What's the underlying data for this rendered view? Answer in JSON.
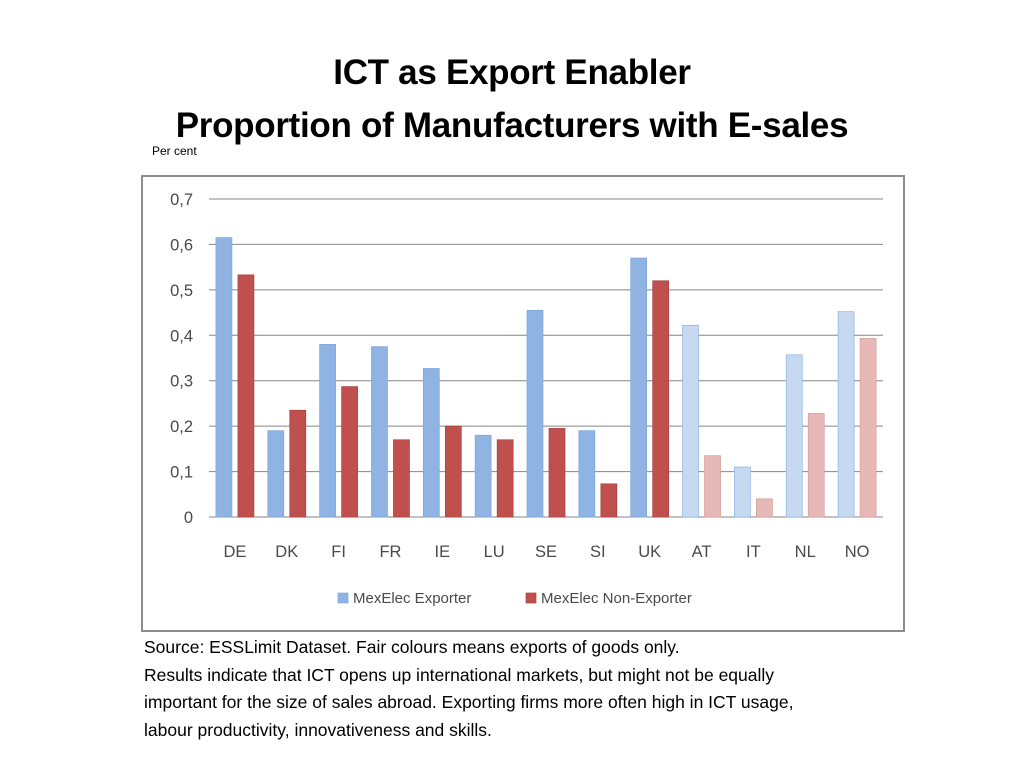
{
  "slide": {
    "title_line1": "ICT as Export Enabler",
    "title_line2": "Proportion of Manufacturers with E-sales",
    "unit_label": "Per cent",
    "source_lines": [
      "Source: ESSLimit Dataset. Fair colours means exports of goods only.",
      "Results indicate  that ICT opens up international markets, but might not be equally",
      "important for the size of sales abroad. Exporting firms more often high in ICT usage,",
      "labour productivity, innovativeness and skills."
    ]
  },
  "colors": {
    "exporter": "#8fb4e3",
    "non_exporter": "#c0504d",
    "exporter_fair": "#c6d9f1",
    "non_exporter_fair": "#e6b9b8",
    "gridline": "#868686"
  },
  "chart_data": {
    "type": "bar",
    "categories": [
      "DE",
      "DK",
      "FI",
      "FR",
      "IE",
      "LU",
      "SE",
      "SI",
      "UK",
      "AT",
      "IT",
      "NL",
      "NO"
    ],
    "fair_categories": [
      "AT",
      "IT",
      "NL",
      "NO"
    ],
    "series": [
      {
        "name": "MexElec Exporter",
        "values": [
          0.615,
          0.19,
          0.38,
          0.375,
          0.327,
          0.18,
          0.455,
          0.19,
          0.57,
          0.422,
          0.11,
          0.357,
          0.452
        ]
      },
      {
        "name": "MexElec Non-Exporter",
        "values": [
          0.533,
          0.235,
          0.287,
          0.17,
          0.2,
          0.17,
          0.195,
          0.073,
          0.52,
          0.135,
          0.04,
          0.228,
          0.393
        ]
      }
    ],
    "ylim": [
      0,
      0.7
    ],
    "yticks": [
      0,
      0.1,
      0.2,
      0.3,
      0.4,
      0.5,
      0.6,
      0.7
    ],
    "ytick_labels": [
      "0",
      "0,1",
      "0,2",
      "0,3",
      "0,4",
      "0,5",
      "0,6",
      "0,7"
    ],
    "grid": true,
    "legend": "bottom"
  }
}
